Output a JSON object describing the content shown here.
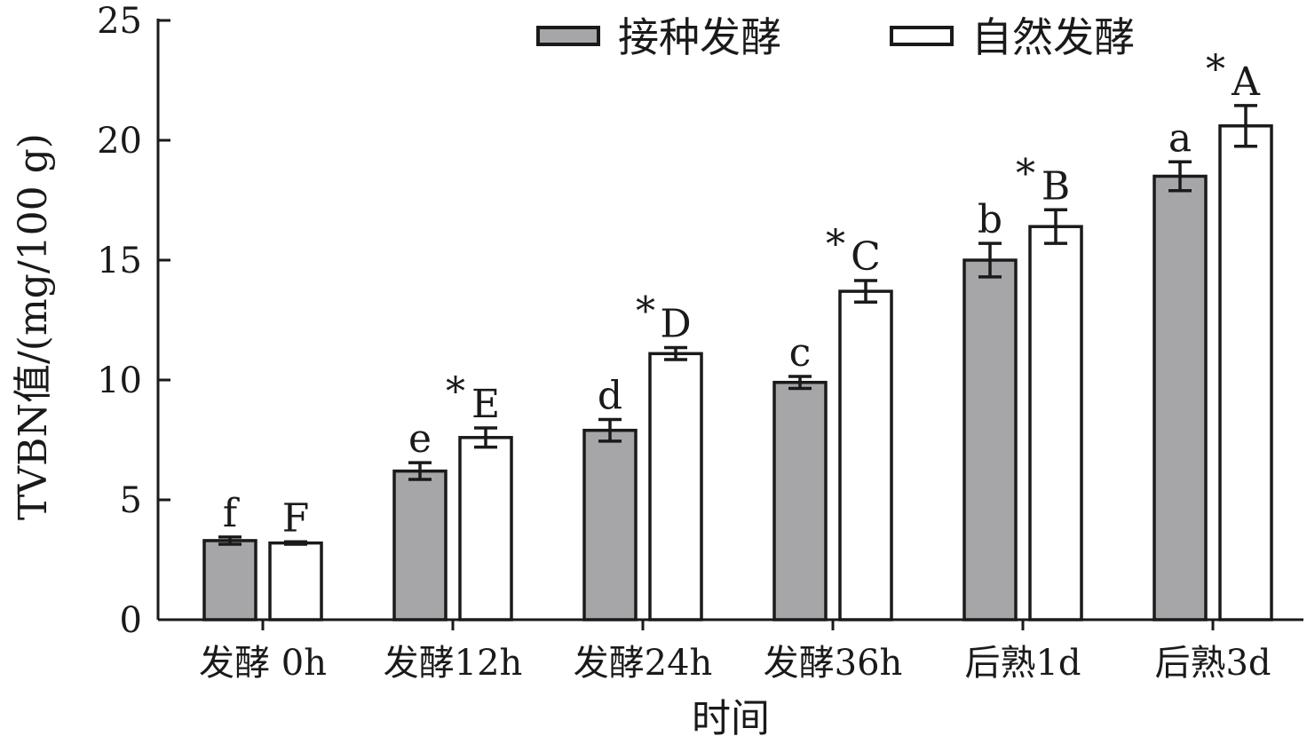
{
  "chart_data": {
    "type": "bar",
    "title": "",
    "xlabel": "时间",
    "ylabel": "TVBN值/(mg/100 g)",
    "ylim": [
      0,
      25
    ],
    "yticks": [
      "0",
      "5",
      "10",
      "15",
      "20",
      "25"
    ],
    "categories": [
      "发酵 0h",
      "发酵12h",
      "发酵24h",
      "发酵36h",
      "后熟1d",
      "后熟3d"
    ],
    "legend_position": "top-right",
    "grid": false,
    "series": [
      {
        "name": "接种发酵",
        "color": "#a6a6a8",
        "values": [
          3.3,
          6.2,
          7.9,
          9.9,
          15.0,
          18.5
        ],
        "errors": [
          0.15,
          0.35,
          0.45,
          0.25,
          0.7,
          0.6
        ],
        "labels": [
          "f",
          "e",
          "d",
          "c",
          "b",
          "a"
        ],
        "stars": [
          "",
          "",
          "",
          "",
          "",
          ""
        ]
      },
      {
        "name": "自然发酵",
        "color": "#ffffff",
        "values": [
          3.2,
          7.6,
          11.1,
          13.7,
          16.4,
          20.6
        ],
        "errors": [
          0.05,
          0.4,
          0.25,
          0.45,
          0.7,
          0.85
        ],
        "labels": [
          "F",
          "E",
          "D",
          "C",
          "B",
          "A"
        ],
        "stars": [
          "",
          "*",
          "*",
          "*",
          "*",
          "*"
        ]
      }
    ]
  }
}
